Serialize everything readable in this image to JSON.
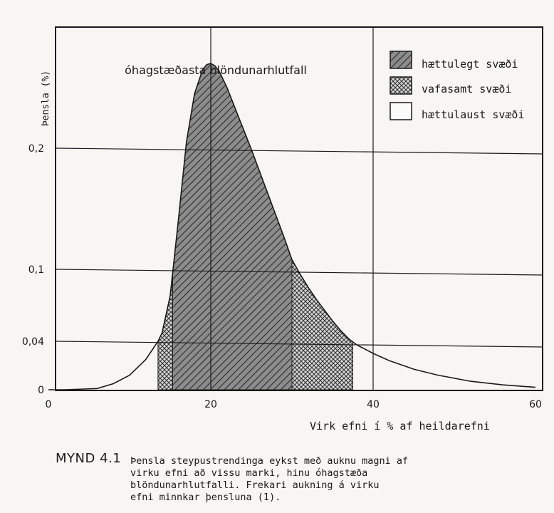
{
  "chart_data": {
    "type": "area",
    "ylabel": "Þensla (%)",
    "xlabel": "Virk efni í % af heildarefni",
    "annotation": "óhagstæðasta blöndunarhlutfall",
    "xlim": [
      0,
      60
    ],
    "ylim": [
      0,
      0.3
    ],
    "x_ticks": [
      {
        "value": 0,
        "label": "0"
      },
      {
        "value": 20,
        "label": "20"
      },
      {
        "value": 40,
        "label": "40"
      },
      {
        "value": 60,
        "label": "60"
      }
    ],
    "y_ticks": [
      {
        "value": 0,
        "label": "0"
      },
      {
        "value": 0.04,
        "label": "0,04"
      },
      {
        "value": 0.1,
        "label": "0,1"
      },
      {
        "value": 0.2,
        "label": "0,2"
      }
    ],
    "grid": true,
    "legend_position": "top-right",
    "curve": {
      "x": [
        2,
        6,
        8,
        10,
        12,
        13.5,
        14,
        15,
        16,
        17,
        18,
        19,
        19.5,
        20,
        20.5,
        21,
        22,
        23,
        24,
        25,
        26,
        27,
        28,
        29,
        30,
        31,
        32,
        33,
        34,
        35,
        36,
        37,
        38,
        40,
        42,
        45,
        48,
        52,
        56,
        60
      ],
      "y": [
        0.0,
        0.001,
        0.005,
        0.012,
        0.025,
        0.04,
        0.047,
        0.078,
        0.14,
        0.205,
        0.245,
        0.265,
        0.269,
        0.27,
        0.268,
        0.264,
        0.25,
        0.233,
        0.216,
        0.199,
        0.181,
        0.163,
        0.145,
        0.127,
        0.108,
        0.096,
        0.085,
        0.075,
        0.066,
        0.057,
        0.049,
        0.042,
        0.037,
        0.03,
        0.024,
        0.017,
        0.012,
        0.007,
        0.004,
        0.002
      ]
    },
    "regions": [
      {
        "name": "hættulegt svæði",
        "pattern": "hatched",
        "x_from": 15.3,
        "x_to": 30
      },
      {
        "name": "vafasamt svæði",
        "pattern": "cross-hatched",
        "x_from": 13.5,
        "x_to": 15.3
      },
      {
        "name": "vafasamt svæði",
        "pattern": "cross-hatched",
        "x_from": 30,
        "x_to": 37.5
      },
      {
        "name": "hættulaust svæði",
        "pattern": "blank",
        "x_from": 0,
        "x_to": 60
      }
    ],
    "legend": [
      {
        "label": "hættulegt svæði",
        "pattern": "hatched"
      },
      {
        "label": "vafasamt svæði",
        "pattern": "cross-hatched"
      },
      {
        "label": "hættulaust svæði",
        "pattern": "blank"
      }
    ],
    "colors": {
      "ink": "#1a1a1a",
      "paper": "#f7f6f3",
      "fill_dark": "#8a8a8a"
    }
  },
  "caption": {
    "label": "MYND 4.1",
    "text": "Þensla steypustrendinga eykst með auknu magni af\nvirku efni að vissu   marki, hinu óhagstæða\nblöndunarhlutfalli.  Frekari aukning á virku\nefni minnkar þensluna (1)."
  }
}
